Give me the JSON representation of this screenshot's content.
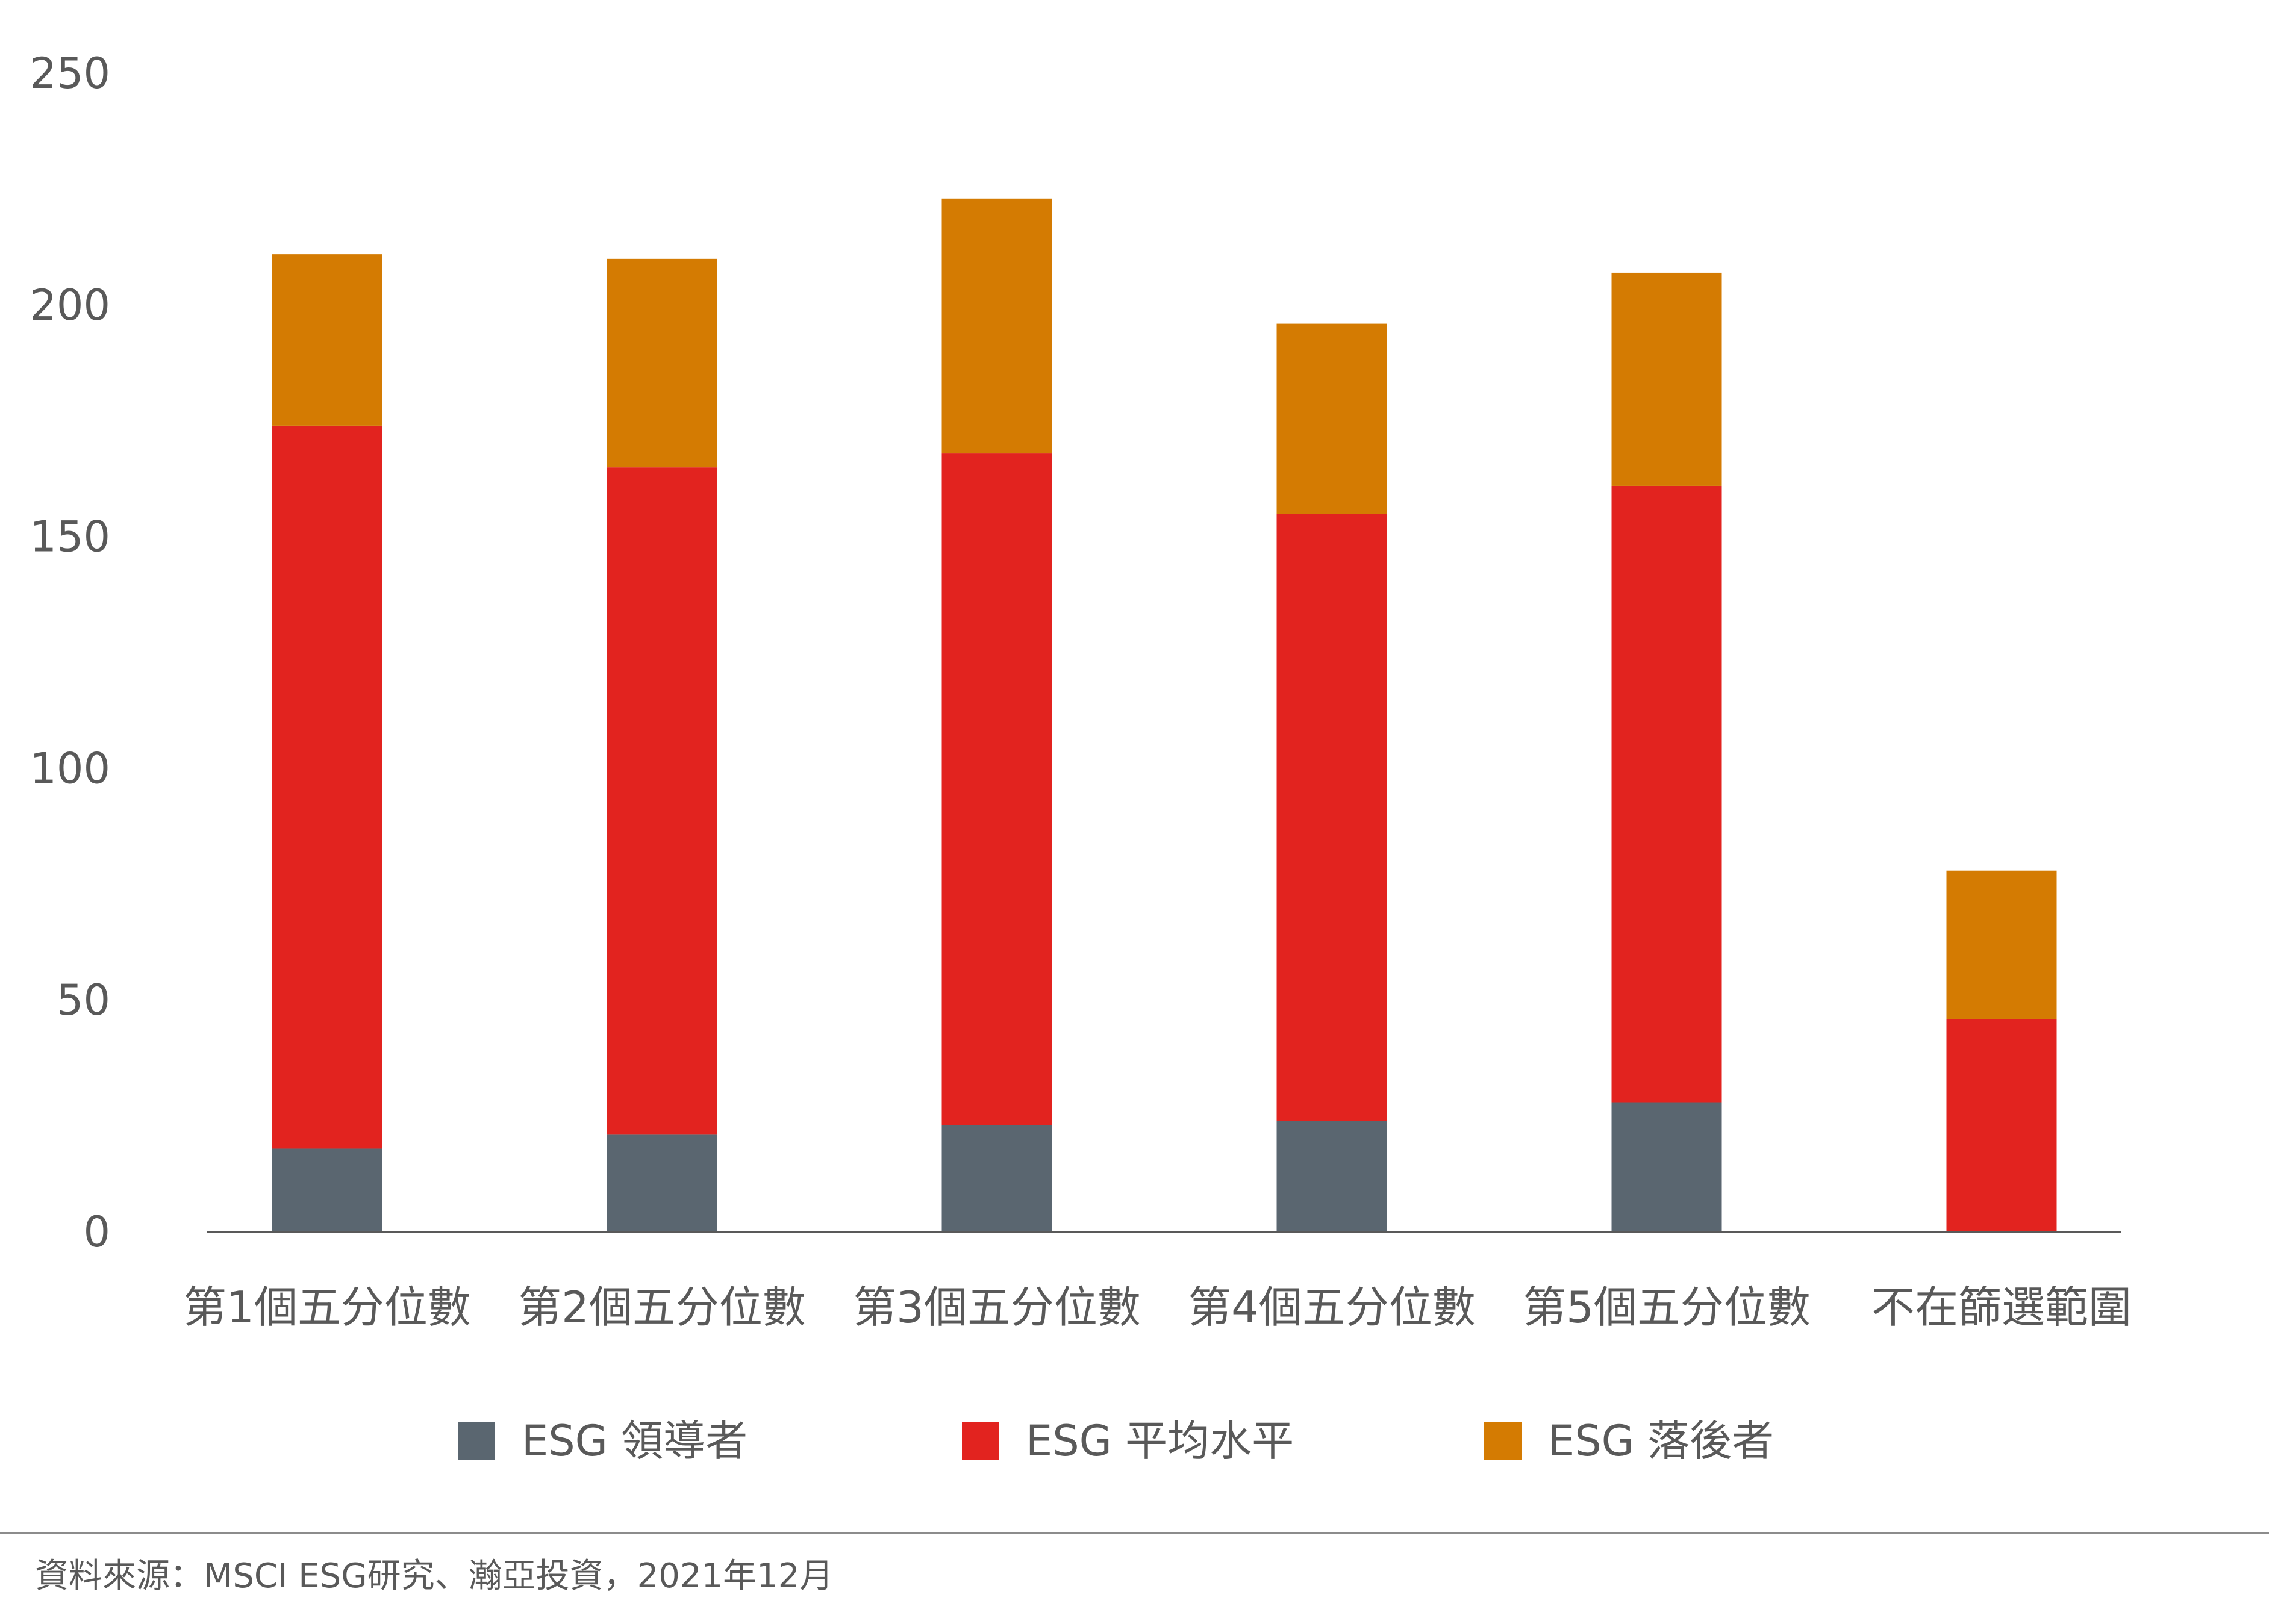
{
  "chart_data": {
    "type": "bar",
    "stacked": true,
    "categories": [
      "第1個五分位數",
      "第2個五分位數",
      "第3個五分位數",
      "第4個五分位數",
      "第5個五分位數",
      "不在篩選範圍"
    ],
    "series": [
      {
        "name": "ESG 領導者",
        "color": "#5a6670",
        "values": [
          18,
          21,
          23,
          24,
          28,
          0
        ]
      },
      {
        "name": "ESG 平均水平",
        "color": "#e2231f",
        "values": [
          156,
          144,
          145,
          131,
          133,
          46
        ]
      },
      {
        "name": "ESG 落後者",
        "color": "#d47b02",
        "values": [
          37,
          45,
          55,
          41,
          46,
          32
        ]
      }
    ],
    "ylim": [
      0,
      250
    ],
    "yticks": [
      "0",
      "50",
      "100",
      "150",
      "200",
      "250"
    ],
    "grid": false,
    "legend_position": "bottom"
  },
  "source": "資料來源：MSCI ESG研究、瀚亞投資，2021年12月"
}
